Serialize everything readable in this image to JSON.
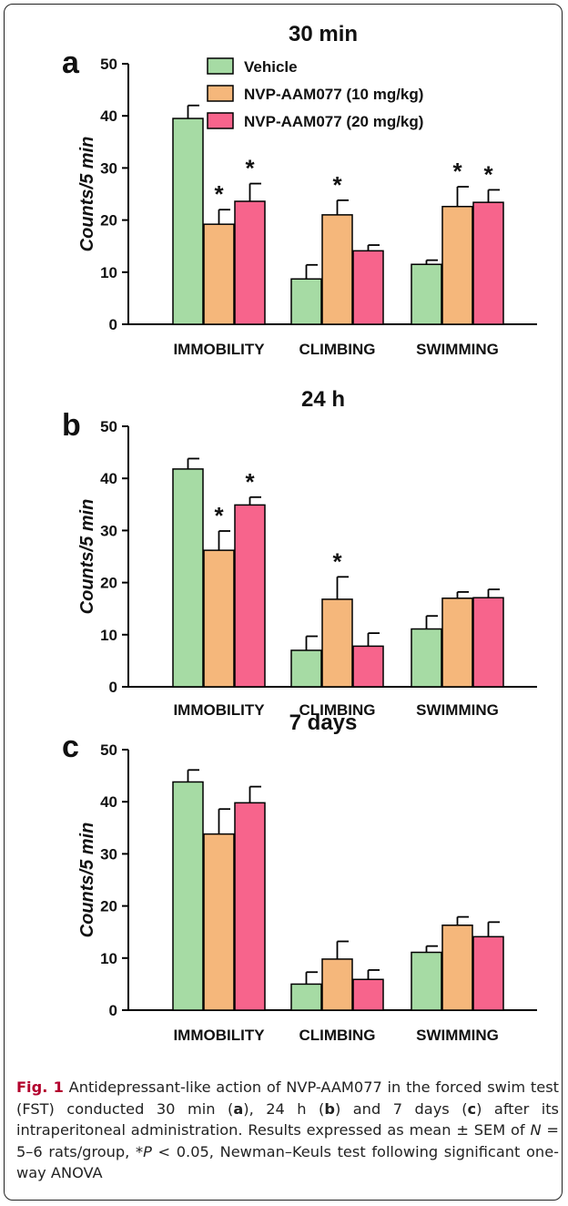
{
  "colors": {
    "vehicle": "#a6dba4",
    "nvp10": "#f5b77b",
    "nvp20": "#f7648c",
    "caption_accent": "#b3002d"
  },
  "legend": [
    "Vehicle",
    "NVP-AAM077 (10 mg/kg)",
    "NVP-AAM077 (20 mg/kg)"
  ],
  "caption": {
    "fig_label": "Fig. 1",
    "part1": " Antidepressant-like action of NVP-AAM077 in the forced swim test (FST) conducted 30 min (",
    "a": "a",
    "part2": "), 24 h (",
    "b": "b",
    "part3": ") and 7 days (",
    "c": "c",
    "part4": ") after its intraperitoneal administration. Results expressed as mean ± SEM of ",
    "n": "N",
    "part5": " = 5–6 rats/group, *",
    "p": "P",
    "part6": " < 0.05, Newman–Keuls test following significant one-way ANOVA"
  },
  "chart_data": [
    {
      "type": "bar",
      "panel": "a",
      "title": "30 min",
      "ylabel": "Counts/5 min",
      "ylim": [
        0,
        50
      ],
      "yticks": [
        0,
        10,
        20,
        30,
        40,
        50
      ],
      "categories": [
        "IMMOBILITY",
        "CLIMBING",
        "SWIMMING"
      ],
      "series": [
        {
          "name": "Vehicle",
          "values": [
            39.5,
            8.7,
            11.5
          ],
          "errors": [
            2.5,
            2.7,
            0.8
          ],
          "significant": [
            false,
            false,
            false
          ]
        },
        {
          "name": "NVP-AAM077 (10 mg/kg)",
          "values": [
            19.2,
            21.0,
            22.6
          ],
          "errors": [
            2.8,
            2.8,
            3.8
          ],
          "significant": [
            true,
            true,
            true
          ]
        },
        {
          "name": "NVP-AAM077 (20 mg/kg)",
          "values": [
            23.6,
            14.1,
            23.4
          ],
          "errors": [
            3.4,
            1.1,
            2.4
          ],
          "significant": [
            true,
            false,
            true
          ]
        }
      ]
    },
    {
      "type": "bar",
      "panel": "b",
      "title": "24 h",
      "ylabel": "Counts/5 min",
      "ylim": [
        0,
        50
      ],
      "yticks": [
        0,
        10,
        20,
        30,
        40,
        50
      ],
      "categories": [
        "IMMOBILITY",
        "CLIMBING",
        "SWIMMING"
      ],
      "series": [
        {
          "name": "Vehicle",
          "values": [
            41.8,
            7.0,
            11.1
          ],
          "errors": [
            2.0,
            2.7,
            2.5
          ],
          "significant": [
            false,
            false,
            false
          ]
        },
        {
          "name": "NVP-AAM077 (10 mg/kg)",
          "values": [
            26.2,
            16.8,
            17.0
          ],
          "errors": [
            3.7,
            4.3,
            1.2
          ],
          "significant": [
            true,
            true,
            false
          ]
        },
        {
          "name": "NVP-AAM077 (20 mg/kg)",
          "values": [
            34.9,
            7.8,
            17.1
          ],
          "errors": [
            1.5,
            2.5,
            1.6
          ],
          "significant": [
            true,
            false,
            false
          ]
        }
      ]
    },
    {
      "type": "bar",
      "panel": "c",
      "title": "7 days",
      "ylabel": "Counts/5 min",
      "ylim": [
        0,
        50
      ],
      "yticks": [
        0,
        10,
        20,
        30,
        40,
        50
      ],
      "categories": [
        "IMMOBILITY",
        "CLIMBING",
        "SWIMMING"
      ],
      "series": [
        {
          "name": "Vehicle",
          "values": [
            43.8,
            5.0,
            11.1
          ],
          "errors": [
            2.3,
            2.3,
            1.2
          ],
          "significant": [
            false,
            false,
            false
          ]
        },
        {
          "name": "NVP-AAM077 (10 mg/kg)",
          "values": [
            33.8,
            9.8,
            16.3
          ],
          "errors": [
            4.8,
            3.4,
            1.6
          ],
          "significant": [
            false,
            false,
            false
          ]
        },
        {
          "name": "NVP-AAM077 (20 mg/kg)",
          "values": [
            39.8,
            5.9,
            14.1
          ],
          "errors": [
            3.1,
            1.8,
            2.8
          ],
          "significant": [
            false,
            false,
            false
          ]
        }
      ]
    }
  ]
}
